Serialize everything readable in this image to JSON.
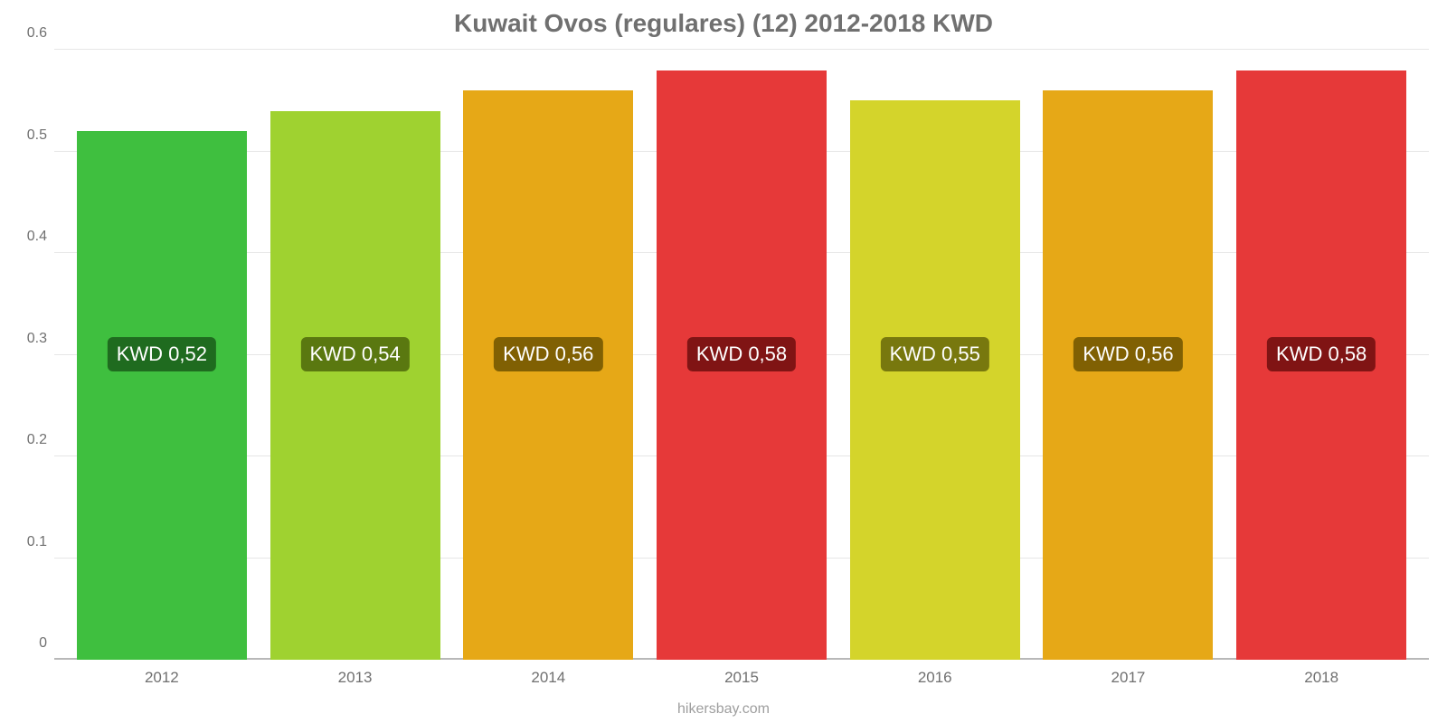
{
  "chart": {
    "type": "bar",
    "title": "Kuwait Ovos (regulares) (12) 2012-2018 KWD",
    "title_fontsize": 28,
    "title_color": "#707070",
    "background_color": "#ffffff",
    "grid_color": "#e6e6e6",
    "axis_text_color": "#707070",
    "axis_fontsize": 16,
    "xaxis_fontsize": 17,
    "ylim": [
      0,
      0.6
    ],
    "ytick_step": 0.1,
    "yticks": [
      0,
      0.1,
      0.2,
      0.3,
      0.4,
      0.5,
      0.6
    ],
    "bar_width_ratio": 0.88,
    "badge_y_value": 0.3,
    "badge_fontsize": 22,
    "badge_text_color": "#ffffff",
    "badge_radius": 6,
    "categories": [
      "2012",
      "2013",
      "2014",
      "2015",
      "2016",
      "2017",
      "2018"
    ],
    "values": [
      0.52,
      0.54,
      0.56,
      0.58,
      0.55,
      0.56,
      0.58
    ],
    "value_labels": [
      "KWD 0,52",
      "KWD 0,54",
      "KWD 0,56",
      "KWD 0,58",
      "KWD 0,55",
      "KWD 0,56",
      "KWD 0,58"
    ],
    "bar_colors": [
      "#3fbf3f",
      "#9fd230",
      "#e6a817",
      "#e63939",
      "#d4d42b",
      "#e6a817",
      "#e63939"
    ],
    "badge_bg_colors": [
      "#1f6b1f",
      "#5a7810",
      "#806003",
      "#801414",
      "#78780e",
      "#806003",
      "#801414"
    ],
    "footer": "hikersbay.com",
    "footer_color": "#9e9e9e",
    "footer_fontsize": 16
  }
}
